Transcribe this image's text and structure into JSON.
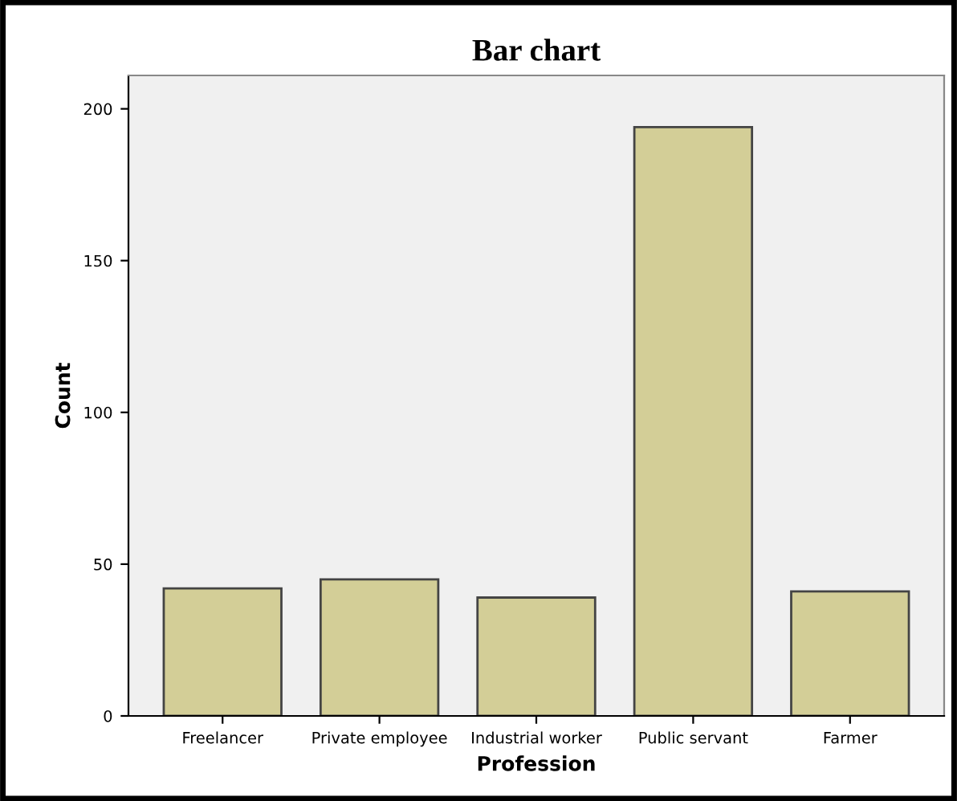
{
  "chart_data": {
    "type": "bar",
    "title": "Bar chart",
    "xlabel": "Profession",
    "ylabel": "Count",
    "categories": [
      "Freelancer",
      "Private employee",
      "Industrial worker",
      "Public servant",
      "Farmer"
    ],
    "values": [
      42,
      45,
      39,
      194,
      41
    ],
    "color": "#d3ce97",
    "ylim": [
      0,
      211
    ],
    "yticks": [
      0,
      50,
      100,
      150,
      200
    ],
    "grid": false
  }
}
